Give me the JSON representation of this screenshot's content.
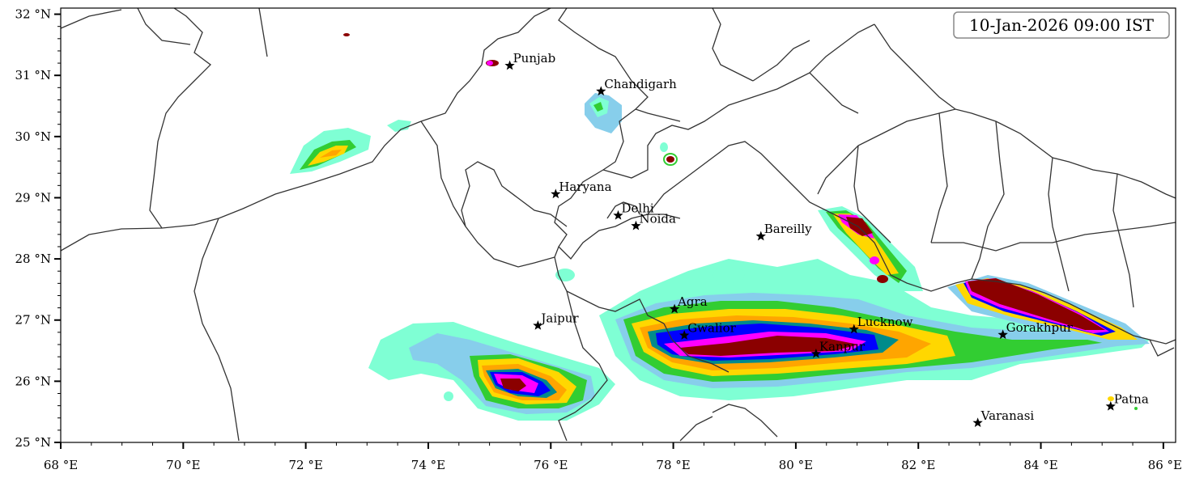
{
  "map": {
    "timestamp": "10-Jan-2026 09:00 IST",
    "extent": {
      "lon_min": 68,
      "lon_max": 86.2,
      "lat_min": 25,
      "lat_max": 32.1
    },
    "x_ticks": [
      {
        "value": 68,
        "label": "68 °E"
      },
      {
        "value": 70,
        "label": "70 °E"
      },
      {
        "value": 72,
        "label": "72 °E"
      },
      {
        "value": 74,
        "label": "74 °E"
      },
      {
        "value": 76,
        "label": "76 °E"
      },
      {
        "value": 78,
        "label": "78 °E"
      },
      {
        "value": 80,
        "label": "80 °E"
      },
      {
        "value": 82,
        "label": "82 °E"
      },
      {
        "value": 84,
        "label": "84 °E"
      },
      {
        "value": 86,
        "label": "86 °E"
      }
    ],
    "y_ticks": [
      {
        "value": 25,
        "label": "25 °N"
      },
      {
        "value": 26,
        "label": "26 °N"
      },
      {
        "value": 27,
        "label": "27 °N"
      },
      {
        "value": 28,
        "label": "28 °N"
      },
      {
        "value": 29,
        "label": "29 °N"
      },
      {
        "value": 30,
        "label": "30 °N"
      },
      {
        "value": 31,
        "label": "31 °N"
      },
      {
        "value": 32,
        "label": "32 °N"
      }
    ],
    "cities": [
      {
        "name": "Punjab",
        "lon": 75.33,
        "lat": 31.16
      },
      {
        "name": "Chandigarh",
        "lon": 76.82,
        "lat": 30.74
      },
      {
        "name": "Haryana",
        "lon": 76.08,
        "lat": 29.06
      },
      {
        "name": "Delhi",
        "lon": 77.1,
        "lat": 28.71
      },
      {
        "name": "Noida",
        "lon": 77.39,
        "lat": 28.54
      },
      {
        "name": "Bareilly",
        "lon": 79.43,
        "lat": 28.37
      },
      {
        "name": "Agra",
        "lon": 78.02,
        "lat": 27.18
      },
      {
        "name": "Jaipur",
        "lon": 75.79,
        "lat": 26.91
      },
      {
        "name": "Gwalior",
        "lon": 78.18,
        "lat": 26.75
      },
      {
        "name": "Lucknow",
        "lon": 80.95,
        "lat": 26.85
      },
      {
        "name": "Kanpur",
        "lon": 80.33,
        "lat": 26.45
      },
      {
        "name": "Gorakhpur",
        "lon": 83.38,
        "lat": 26.76
      },
      {
        "name": "Patna",
        "lon": 85.14,
        "lat": 25.59
      },
      {
        "name": "Varanasi",
        "lon": 82.97,
        "lat": 25.32
      }
    ],
    "level_colors": [
      "#7fffd4",
      "#87ceeb",
      "#32cd32",
      "#ffd700",
      "#ffa500",
      "#008b8b",
      "#0000ff",
      "#ff00ff",
      "#8b0000"
    ]
  }
}
